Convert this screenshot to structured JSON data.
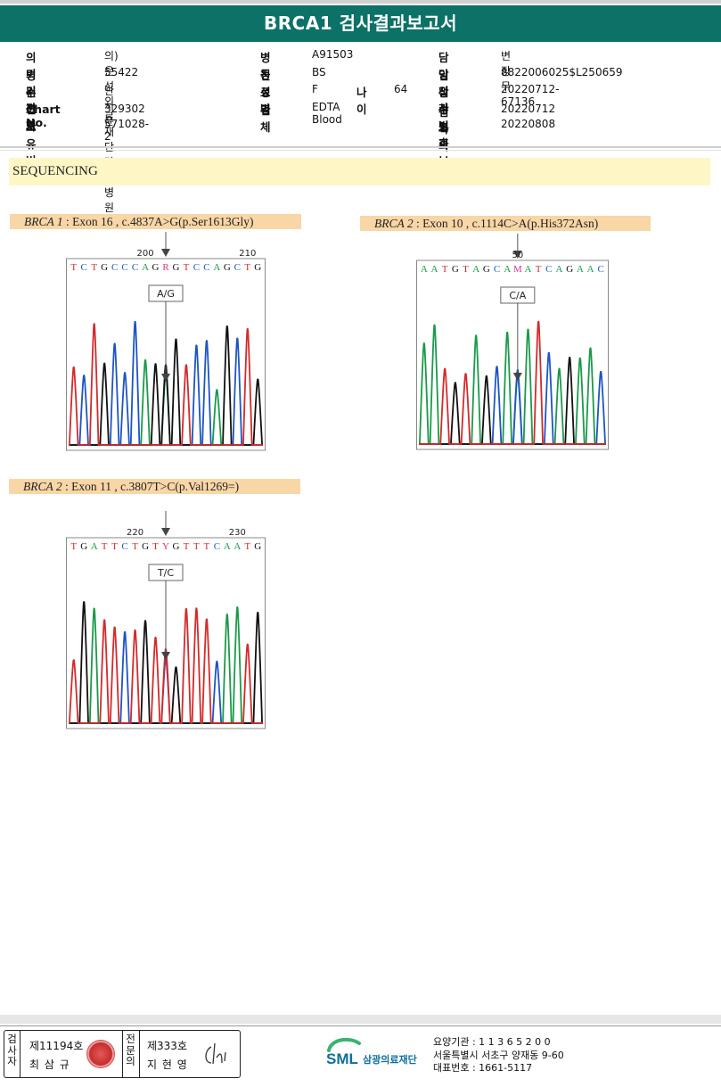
{
  "title": "BRCA1 검사결과보고서",
  "info": {
    "col1": [
      {
        "label": "의뢰기관명",
        "value": "의)은성의료재단 강안병원"
      },
      {
        "label": "병원코드",
        "value": "55422"
      },
      {
        "label": "수진자",
        "value": "안서윤"
      },
      {
        "label": "Chart No.",
        "value": "329302"
      },
      {
        "label": "고유번호",
        "value": "571028-2"
      }
    ],
    "col2": [
      {
        "label": "병동",
        "value": "A91503"
      },
      {
        "label": "진료과",
        "value": "BS"
      },
      {
        "label": "성별",
        "value": "F",
        "label2": "나이",
        "value2": "64"
      },
      {
        "label": "검체",
        "value": "EDTA Blood"
      }
    ],
    "col3": [
      {
        "label": "담당의사",
        "value": "변장무"
      },
      {
        "label": "임상정보",
        "value": "8822006025$L250659"
      },
      {
        "label": "접수번호",
        "value": "20220712-67136"
      },
      {
        "label": "검사의뢰",
        "value": "20220712"
      },
      {
        "label": "결과보고",
        "value": "20220808"
      }
    ]
  },
  "section_title": "SEQUENCING",
  "variants": [
    {
      "gene": "BRCA 1",
      "desc": " : Exon 16 , c.4837A>G(p.Ser1613Gly)",
      "chrom": {
        "bases": [
          "T",
          "C",
          "T",
          "G",
          "C",
          "C",
          "C",
          "A",
          "G",
          "R",
          "G",
          "T",
          "C",
          "C",
          "A",
          "G",
          "C",
          "T",
          "G"
        ],
        "ticks": [
          {
            "label": "200",
            "index": 7
          },
          {
            "label": "210",
            "index": 17
          }
        ],
        "call": "A/G",
        "call_index": 9
      }
    },
    {
      "gene": "BRCA 2",
      "desc": " : Exon 10 , c.1114C>A(p.His372Asn)",
      "chrom": {
        "bases": [
          "A",
          "A",
          "T",
          "G",
          "T",
          "A",
          "G",
          "C",
          "A",
          "M",
          "A",
          "T",
          "C",
          "A",
          "G",
          "A",
          "A",
          "C"
        ],
        "ticks": [
          {
            "label": "50",
            "index": 9
          }
        ],
        "call": "C/A",
        "call_index": 9
      }
    },
    {
      "gene": "BRCA 2",
      "desc": " : Exon 11 , c.3807T>C(p.Val1269=)",
      "chrom": {
        "bases": [
          "T",
          "G",
          "A",
          "T",
          "T",
          "C",
          "T",
          "G",
          "T",
          "Y",
          "G",
          "T",
          "T",
          "T",
          "C",
          "A",
          "A",
          "T",
          "G"
        ],
        "ticks": [
          {
            "label": "220",
            "index": 6
          },
          {
            "label": "230",
            "index": 16
          }
        ],
        "call": "T/C",
        "call_index": 9
      }
    }
  ],
  "colors": {
    "A": "#1a9a4a",
    "C": "#1d55c4",
    "G": "#111111",
    "T": "#d42a2a",
    "ambiguous": "#d4368a",
    "header": "#0c7166"
  },
  "signatures": {
    "tester_label": "검사자",
    "tester_no": "제11194호",
    "tester_name": "최 삼 규",
    "specialist_label": "전문의",
    "specialist_no": "제333호",
    "specialist_name": "지 현 영"
  },
  "footer": {
    "logo_text": "SML",
    "org_name": "삼광의료재단",
    "line1": "요양기관 : 1 1 3 6 5 2 0 0",
    "line2": "서울특별시 서초구 양재동 9-60",
    "line3": "대표번호 : 1661-5117"
  }
}
